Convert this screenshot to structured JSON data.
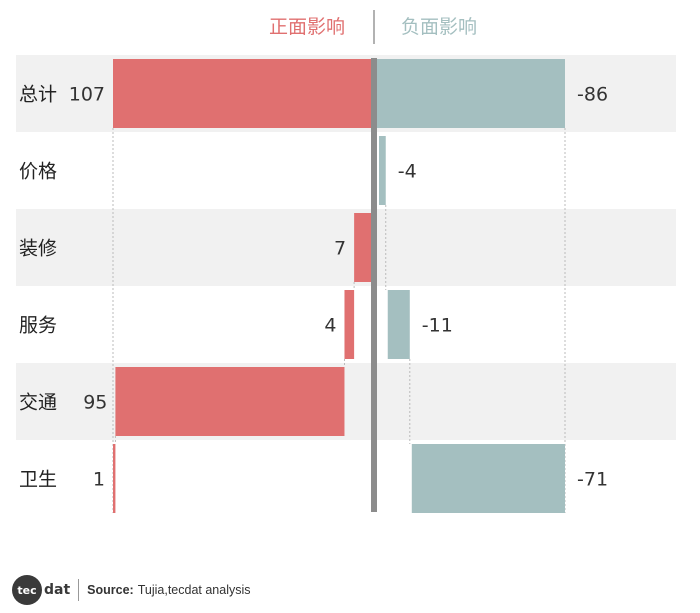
{
  "chart_data": {
    "type": "bar",
    "headers": {
      "positive": "正面影响",
      "negative": "负面影响"
    },
    "colors": {
      "positive": "#e07070",
      "negative": "#a4bfc0",
      "axis": "#8c8c8c",
      "band": "#f1f1f1"
    },
    "categories": [
      "总计",
      "价格",
      "装修",
      "服务",
      "交通",
      "卫生"
    ],
    "series": [
      {
        "name": "正面影响",
        "values": [
          107,
          null,
          7,
          4,
          95,
          1
        ]
      },
      {
        "name": "负面影响",
        "values": [
          -86,
          -4,
          null,
          -11,
          null,
          -71
        ]
      }
    ]
  },
  "footer": {
    "logo_te": "tec",
    "logo_dat": "dat",
    "source_key": "Source:",
    "source_value": "Tujia,tecdat analysis"
  }
}
